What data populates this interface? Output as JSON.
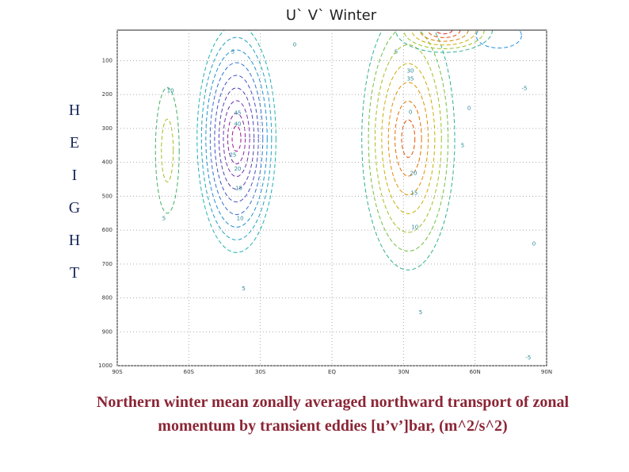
{
  "chart_data": {
    "type": "contour",
    "title": "U` V` Winter",
    "y_label": "HEIGHT",
    "caption": "Northern winter mean zonally averaged northward transport of zonal momentum by transient eddies [u’v’]bar, (m^2/s^2)",
    "xlim": [
      -90,
      90
    ],
    "xticks": [
      {
        "value": -90,
        "label": "90S"
      },
      {
        "value": -60,
        "label": "60S"
      },
      {
        "value": -30,
        "label": "30S"
      },
      {
        "value": 0,
        "label": "EQ"
      },
      {
        "value": 30,
        "label": "30N"
      },
      {
        "value": 60,
        "label": "60N"
      },
      {
        "value": 90,
        "label": "90N"
      }
    ],
    "ylim": [
      1000,
      10
    ],
    "yticks": [
      100,
      200,
      300,
      400,
      500,
      600,
      700,
      800,
      900,
      1000
    ],
    "grid": true,
    "levels": [
      -5,
      5,
      10,
      15,
      20,
      25,
      30,
      35,
      40,
      45
    ],
    "features": [
      {
        "lat": -40,
        "pressure": 330,
        "peak": 45,
        "colors": [
          "#20b0b0",
          "#20a0c0",
          "#2090d0",
          "#3070d0",
          "#4050c0",
          "#5040b0",
          "#7030b0",
          "#8a20a0",
          "#a01090"
        ]
      },
      {
        "lat": 32,
        "pressure": 330,
        "peak": 35,
        "colors": [
          "#30b090",
          "#70c040",
          "#a0c020",
          "#c8b000",
          "#e09000",
          "#e07000",
          "#e05000"
        ]
      },
      {
        "lat": -69,
        "pressure": 365,
        "peak": 10,
        "colors": [
          "#40b060",
          "#a0c020"
        ]
      },
      {
        "lat": 47,
        "pressure": 10,
        "peak": 30,
        "colors": [
          "#30b090",
          "#a0c020",
          "#d0b000",
          "#e08000",
          "#e05000",
          "#d02020"
        ]
      },
      {
        "lat": 70,
        "pressure": 26,
        "peak": -5,
        "colors": [
          "#2090e0"
        ]
      }
    ],
    "contour_labels": [
      {
        "value": 5,
        "lat": -41.5,
        "pressure": 74
      },
      {
        "value": 45,
        "lat": -39.5,
        "pressure": 255
      },
      {
        "value": 40,
        "lat": -39.5,
        "pressure": 287
      },
      {
        "value": 25,
        "lat": -41.5,
        "pressure": 379
      },
      {
        "value": 20,
        "lat": -39.5,
        "pressure": 419
      },
      {
        "value": 15,
        "lat": -39,
        "pressure": 477
      },
      {
        "value": 10,
        "lat": -38.5,
        "pressure": 566
      },
      {
        "value": 5,
        "lat": -37,
        "pressure": 773
      },
      {
        "value": 10,
        "lat": -67.7,
        "pressure": 189
      },
      {
        "value": 5,
        "lat": -70.4,
        "pressure": 566
      },
      {
        "value": 5,
        "lat": 26.9,
        "pressure": 74
      },
      {
        "value": 30,
        "lat": 32.9,
        "pressure": 130
      },
      {
        "value": 35,
        "lat": 32.9,
        "pressure": 154
      },
      {
        "value": 0,
        "lat": 32.9,
        "pressure": 252
      },
      {
        "value": 20,
        "lat": 34.2,
        "pressure": 433
      },
      {
        "value": 15,
        "lat": 34.5,
        "pressure": 491
      },
      {
        "value": 10,
        "lat": 34.8,
        "pressure": 592
      },
      {
        "value": 5,
        "lat": 37.2,
        "pressure": 843
      },
      {
        "value": 0,
        "lat": -15.6,
        "pressure": 53
      },
      {
        "value": 0,
        "lat": 57.5,
        "pressure": 241
      },
      {
        "value": -5,
        "lat": 80.7,
        "pressure": 182
      },
      {
        "value": 0,
        "lat": 84.7,
        "pressure": 641
      },
      {
        "value": -5,
        "lat": 82.3,
        "pressure": 977
      },
      {
        "value": 5,
        "lat": 54.8,
        "pressure": 351
      }
    ]
  }
}
